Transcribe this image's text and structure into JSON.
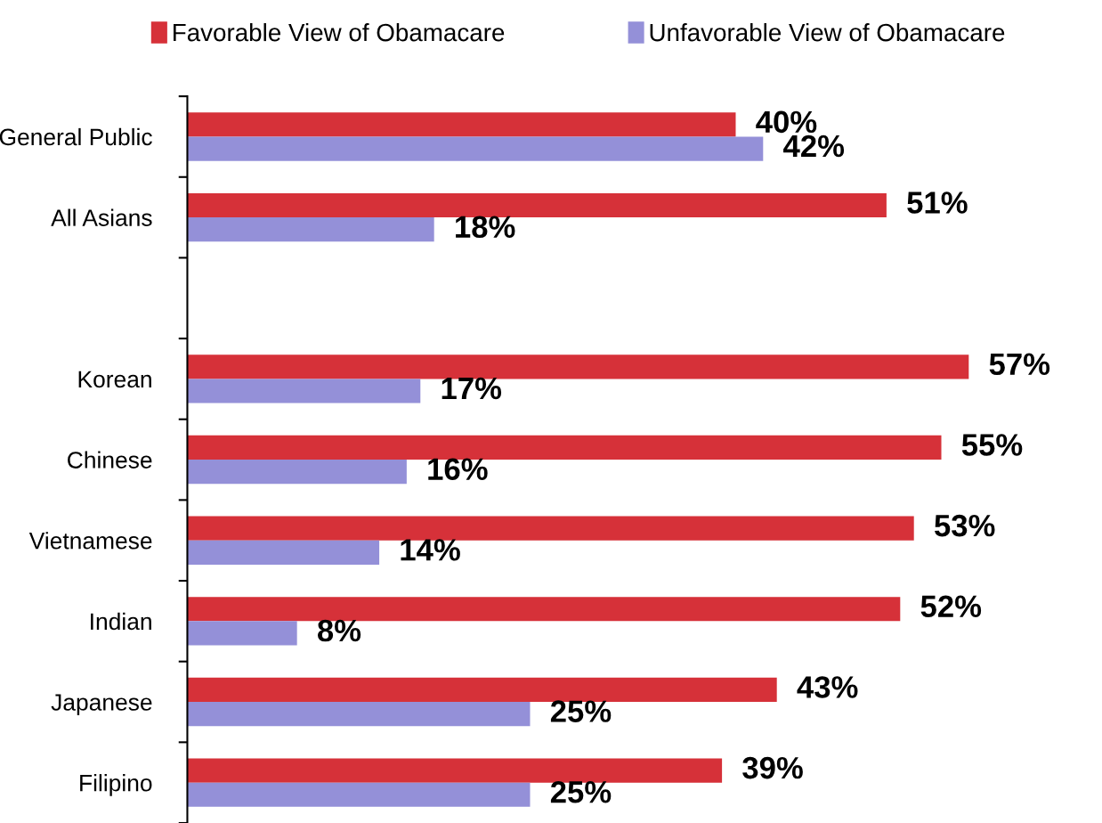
{
  "chart_data": {
    "type": "bar",
    "orientation": "horizontal",
    "categories": [
      "General Public",
      "All Asians",
      null,
      "Korean",
      "Chinese",
      "Vietnamese",
      "Indian",
      "Japanese",
      "Filipino"
    ],
    "series": [
      {
        "name": "Favorable View of Obamacare",
        "color": "#d63139",
        "values": [
          40,
          51,
          null,
          57,
          55,
          53,
          52,
          43,
          39
        ],
        "value_labels": [
          "40%",
          "51%",
          null,
          "57%",
          "55%",
          "53%",
          "52%",
          "43%",
          "39%"
        ]
      },
      {
        "name": "Unfavorable View of Obamacare",
        "color": "#9490d8",
        "values": [
          42,
          18,
          null,
          17,
          16,
          14,
          8,
          25,
          25
        ],
        "value_labels": [
          "42%",
          "18%",
          null,
          "17%",
          "16%",
          "14%",
          "8%",
          "25%",
          "25%"
        ]
      }
    ],
    "legend": "top",
    "grid": false
  }
}
